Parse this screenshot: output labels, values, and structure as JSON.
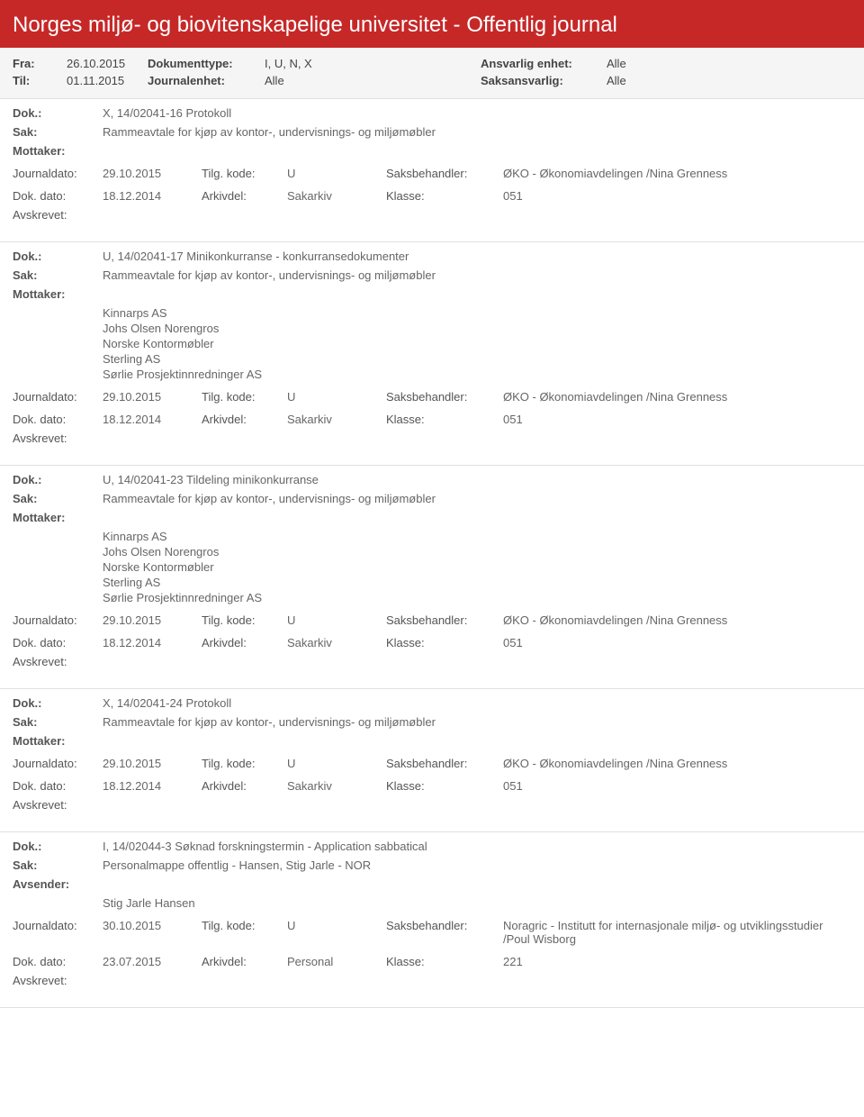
{
  "page_title": "Norges miljø- og biovitenskapelige universitet - Offentlig journal",
  "colors": {
    "header_bg": "#c62828",
    "filter_bg": "#f5f5f5",
    "border": "#e0e0e0",
    "text": "#555555"
  },
  "filter": {
    "fra_label": "Fra:",
    "fra": "26.10.2015",
    "til_label": "Til:",
    "til": "01.11.2015",
    "doktype_label": "Dokumenttype:",
    "doktype": "I, U, N, X",
    "journalenhet_label": "Journalenhet:",
    "journalenhet": "Alle",
    "ansvarlig_label": "Ansvarlig enhet:",
    "ansvarlig": "Alle",
    "saksansvarlig_label": "Saksansvarlig:",
    "saksansvarlig": "Alle"
  },
  "labels": {
    "dok": "Dok.:",
    "sak": "Sak:",
    "mottaker": "Mottaker:",
    "avsender": "Avsender:",
    "journaldato": "Journaldato:",
    "tilgkode": "Tilg. kode:",
    "saksbehandler": "Saksbehandler:",
    "dokdato": "Dok. dato:",
    "arkivdel": "Arkivdel:",
    "klasse": "Klasse:",
    "avskrevet": "Avskrevet:"
  },
  "entries": [
    {
      "dok": "X, 14/02041-16 Protokoll",
      "sak": "Rammeavtale for kjøp av kontor-, undervisnings- og miljømøbler",
      "party_label": "Mottaker:",
      "recipients": [],
      "journaldato": "29.10.2015",
      "tilgkode": "U",
      "saksbehandler": "ØKO - Økonomiavdelingen /Nina Grenness",
      "dokdato": "18.12.2014",
      "arkivdel": "Sakarkiv",
      "klasse": "051"
    },
    {
      "dok": "U, 14/02041-17 Minikonkurranse - konkurransedokumenter",
      "sak": "Rammeavtale for kjøp av kontor-, undervisnings- og miljømøbler",
      "party_label": "Mottaker:",
      "recipients": [
        "Kinnarps AS",
        "Johs Olsen Norengros",
        "Norske Kontormøbler",
        "Sterling AS",
        "Sørlie Prosjektinnredninger AS"
      ],
      "journaldato": "29.10.2015",
      "tilgkode": "U",
      "saksbehandler": "ØKO - Økonomiavdelingen /Nina Grenness",
      "dokdato": "18.12.2014",
      "arkivdel": "Sakarkiv",
      "klasse": "051"
    },
    {
      "dok": "U, 14/02041-23 Tildeling minikonkurranse",
      "sak": "Rammeavtale for kjøp av kontor-, undervisnings- og miljømøbler",
      "party_label": "Mottaker:",
      "recipients": [
        "Kinnarps AS",
        "Johs Olsen Norengros",
        "Norske Kontormøbler",
        "Sterling AS",
        "Sørlie Prosjektinnredninger AS"
      ],
      "journaldato": "29.10.2015",
      "tilgkode": "U",
      "saksbehandler": "ØKO - Økonomiavdelingen /Nina Grenness",
      "dokdato": "18.12.2014",
      "arkivdel": "Sakarkiv",
      "klasse": "051"
    },
    {
      "dok": "X, 14/02041-24 Protokoll",
      "sak": "Rammeavtale for kjøp av kontor-, undervisnings- og miljømøbler",
      "party_label": "Mottaker:",
      "recipients": [],
      "journaldato": "29.10.2015",
      "tilgkode": "U",
      "saksbehandler": "ØKO - Økonomiavdelingen /Nina Grenness",
      "dokdato": "18.12.2014",
      "arkivdel": "Sakarkiv",
      "klasse": "051"
    },
    {
      "dok": "I, 14/02044-3 Søknad forskningstermin - Application sabbatical",
      "sak": "Personalmappe offentlig - Hansen, Stig Jarle - NOR",
      "party_label": "Avsender:",
      "recipients": [
        "Stig Jarle Hansen"
      ],
      "journaldato": "30.10.2015",
      "tilgkode": "U",
      "saksbehandler": "Noragric - Institutt for internasjonale miljø- og utviklingsstudier /Poul Wisborg",
      "dokdato": "23.07.2015",
      "arkivdel": "Personal",
      "klasse": "221"
    }
  ]
}
